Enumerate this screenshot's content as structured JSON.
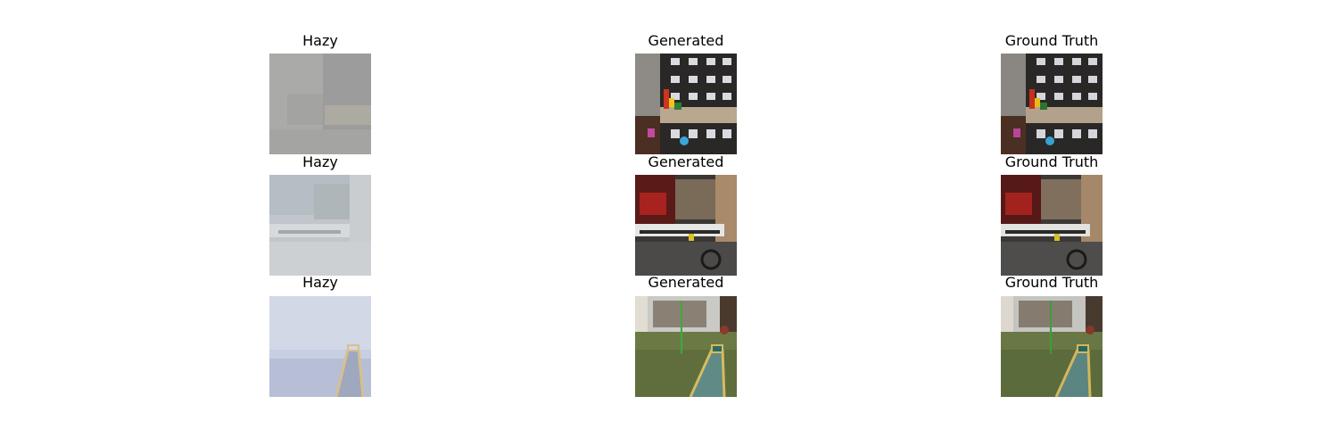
{
  "figure": {
    "rows": [
      {
        "hazy": {
          "title": "Hazy",
          "scene": "hazy-indoor-shelf-photo"
        },
        "generated": {
          "title": "Generated",
          "scene": "dehazed-indoor-shelf-photo"
        },
        "ground_truth": {
          "title": "Ground Truth",
          "scene": "clear-indoor-shelf-photo"
        }
      },
      {
        "hazy": {
          "title": "Hazy",
          "scene": "hazy-cluttered-room-photo"
        },
        "generated": {
          "title": "Generated",
          "scene": "dehazed-cluttered-room-photo"
        },
        "ground_truth": {
          "title": "Ground Truth",
          "scene": "clear-cluttered-room-photo"
        }
      },
      {
        "hazy": {
          "title": "Hazy",
          "scene": "hazy-outdoor-minigolf-photo"
        },
        "generated": {
          "title": "Generated",
          "scene": "dehazed-outdoor-minigolf-photo"
        },
        "ground_truth": {
          "title": "Ground Truth",
          "scene": "clear-outdoor-minigolf-photo"
        }
      }
    ]
  }
}
